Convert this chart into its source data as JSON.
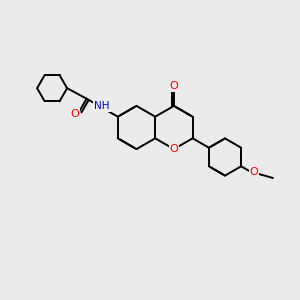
{
  "bg_color": "#ebebeb",
  "bond_color": "#000000",
  "bond_width": 1.4,
  "atom_colors": {
    "O": "#ff0000",
    "N": "#0000cc",
    "H": "#3cb0b0",
    "C": "#000000"
  },
  "fig_width": 3.0,
  "fig_height": 3.0,
  "dpi": 100
}
